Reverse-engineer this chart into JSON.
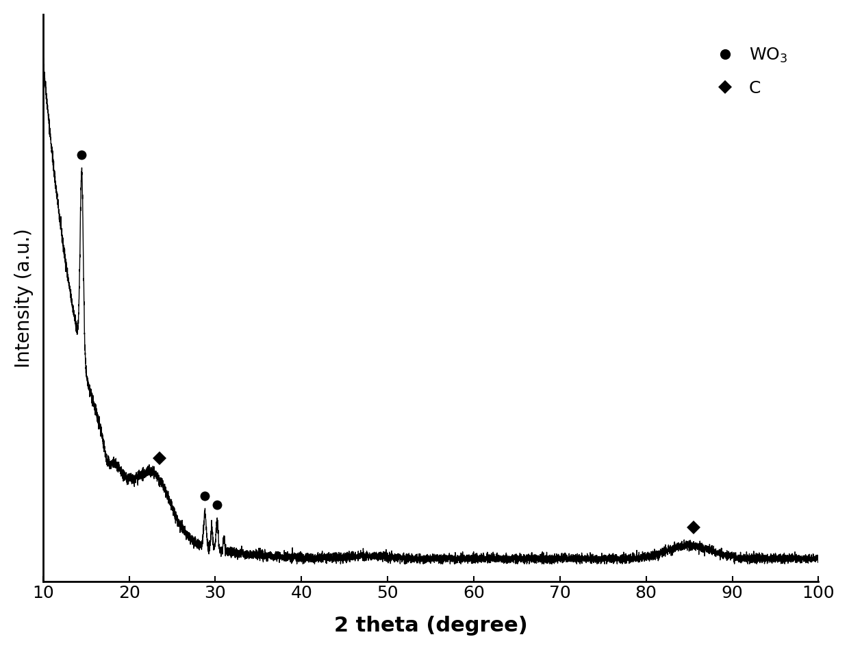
{
  "xlabel": "2 theta (degree)",
  "ylabel": "Intensity (a.u.)",
  "xlim": [
    10,
    100
  ],
  "xticks": [
    10,
    20,
    30,
    40,
    50,
    60,
    70,
    80,
    90,
    100
  ],
  "background_color": "#ffffff",
  "line_color": "#000000",
  "line_width": 1.0,
  "xlabel_fontsize": 22,
  "ylabel_fontsize": 20,
  "tick_fontsize": 18,
  "legend_fontsize": 18,
  "wo3_peaks": [
    14.5,
    28.8,
    30.2
  ],
  "c_peaks": [
    23.5,
    85.5
  ],
  "marker_size": 10,
  "marker_color": "#000000",
  "legend_wo3_label": "WO$_3$",
  "legend_c_label": "C"
}
